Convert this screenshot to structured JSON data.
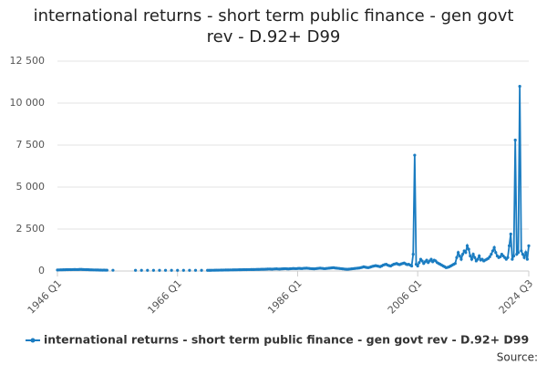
{
  "chart_data": {
    "type": "line",
    "title": "international returns - short term public finance - gen govt rev - D.92+ D99",
    "source": "Source:",
    "categories": [
      "1946 Q1",
      null,
      null,
      null,
      null,
      null,
      null,
      null,
      null,
      null,
      null,
      null,
      null,
      null,
      null,
      null,
      null,
      null,
      null,
      null,
      null,
      null,
      null,
      null,
      null,
      null,
      null,
      null,
      null,
      null,
      null,
      null,
      null,
      null,
      null,
      null,
      null,
      null,
      null,
      null,
      null,
      null,
      null,
      null,
      null,
      null,
      null,
      null,
      null,
      null,
      null,
      null,
      null,
      null,
      null,
      null,
      null,
      null,
      null,
      null,
      null,
      null,
      null,
      null,
      null,
      null,
      null,
      null,
      null,
      null,
      null,
      null,
      null,
      null,
      null,
      null,
      null,
      null,
      null,
      null,
      "1966 Q1",
      null,
      null,
      null,
      null,
      null,
      null,
      null,
      null,
      null,
      null,
      null,
      null,
      null,
      null,
      null,
      null,
      null,
      null,
      null,
      null,
      null,
      null,
      null,
      null,
      null,
      null,
      null,
      null,
      null,
      null,
      null,
      null,
      null,
      null,
      null,
      null,
      null,
      null,
      null,
      null,
      null,
      null,
      null,
      null,
      null,
      null,
      null,
      null,
      null,
      null,
      null,
      null,
      null,
      null,
      null,
      null,
      null,
      null,
      null,
      null,
      null,
      null,
      null,
      null,
      null,
      null,
      null,
      null,
      null,
      null,
      null,
      null,
      null,
      null,
      null,
      null,
      null,
      null,
      null,
      "1986 Q1",
      null,
      null,
      null,
      null,
      null,
      null,
      null,
      null,
      null,
      null,
      null,
      null,
      null,
      null,
      null,
      null,
      null,
      null,
      null,
      null,
      null,
      null,
      null,
      null,
      null,
      null,
      null,
      null,
      null,
      null,
      null,
      null,
      null,
      null,
      null,
      null,
      null,
      null,
      null,
      null,
      null,
      null,
      null,
      null,
      null,
      null,
      null,
      null,
      null,
      null,
      null,
      null,
      null,
      null,
      null,
      null,
      null,
      null,
      null,
      null,
      null,
      null,
      null,
      null,
      null,
      null,
      null,
      null,
      null,
      null,
      null,
      null,
      null,
      null,
      null,
      null,
      null,
      null,
      null,
      "2006 Q1",
      null,
      null,
      null,
      null,
      null,
      null,
      null,
      null,
      null,
      null,
      null,
      null,
      null,
      null,
      null,
      null,
      null,
      null,
      null,
      null,
      null,
      null,
      null,
      null,
      null,
      null,
      null,
      null,
      null,
      null,
      null,
      null,
      null,
      null,
      null,
      null,
      null,
      null,
      null,
      null,
      null,
      null,
      null,
      null,
      null,
      null,
      null,
      null,
      null,
      null,
      null,
      null,
      null,
      null,
      null,
      null,
      null,
      null,
      null,
      null,
      null,
      null,
      null,
      null,
      null,
      null,
      null,
      null,
      null,
      null,
      null,
      null,
      null,
      "2024 Q3"
    ],
    "series": [
      {
        "name": "international returns - short term public finance - gen govt rev - D.92+ D99",
        "color": "#1a7cc1",
        "values": [
          60,
          65,
          70,
          70,
          75,
          75,
          80,
          80,
          85,
          80,
          85,
          90,
          90,
          85,
          90,
          95,
          95,
          90,
          85,
          80,
          80,
          75,
          70,
          70,
          65,
          65,
          60,
          60,
          55,
          55,
          50,
          55,
          50,
          50,
          null,
          null,
          null,
          45,
          null,
          null,
          null,
          null,
          null,
          null,
          null,
          null,
          null,
          null,
          null,
          null,
          null,
          null,
          40,
          null,
          null,
          null,
          40,
          null,
          null,
          null,
          40,
          null,
          null,
          null,
          40,
          null,
          null,
          null,
          40,
          null,
          null,
          null,
          40,
          null,
          null,
          null,
          40,
          null,
          null,
          null,
          40,
          null,
          null,
          null,
          40,
          null,
          null,
          null,
          40,
          null,
          null,
          null,
          40,
          null,
          null,
          null,
          40,
          null,
          null,
          null,
          40,
          40,
          42,
          45,
          45,
          48,
          50,
          50,
          52,
          55,
          55,
          58,
          60,
          60,
          62,
          65,
          65,
          68,
          70,
          70,
          72,
          75,
          75,
          78,
          80,
          80,
          82,
          85,
          85,
          88,
          90,
          90,
          92,
          95,
          95,
          98,
          100,
          100,
          105,
          110,
          115,
          120,
          115,
          110,
          120,
          125,
          130,
          120,
          115,
          125,
          130,
          135,
          140,
          130,
          125,
          135,
          140,
          150,
          145,
          140,
          150,
          155,
          150,
          145,
          160,
          165,
          170,
          160,
          150,
          140,
          135,
          130,
          140,
          150,
          160,
          170,
          160,
          150,
          140,
          150,
          160,
          170,
          180,
          190,
          200,
          180,
          170,
          160,
          150,
          140,
          130,
          120,
          110,
          100,
          110,
          120,
          130,
          140,
          150,
          160,
          170,
          180,
          200,
          220,
          250,
          230,
          210,
          200,
          220,
          250,
          280,
          300,
          320,
          300,
          280,
          260,
          300,
          350,
          380,
          400,
          350,
          320,
          300,
          350,
          400,
          420,
          450,
          400,
          380,
          420,
          450,
          480,
          420,
          380,
          400,
          350,
          300,
          1000,
          6900,
          400,
          300,
          500,
          700,
          600,
          450,
          550,
          650,
          500,
          600,
          700,
          550,
          650,
          600,
          500,
          450,
          400,
          350,
          300,
          250,
          200,
          220,
          250,
          300,
          350,
          400,
          450,
          800,
          1100,
          900,
          700,
          1000,
          1200,
          1100,
          1500,
          1300,
          900,
          700,
          1000,
          800,
          600,
          700,
          900,
          650,
          700,
          600,
          650,
          700,
          750,
          850,
          1000,
          1200,
          1400,
          1100,
          900,
          800,
          850,
          1000,
          900,
          800,
          700,
          800,
          1500,
          2200,
          700,
          900,
          7800,
          1000,
          1100,
          11000,
          1200,
          1000,
          800,
          1100,
          700,
          1500
        ]
      }
    ],
    "ylim": [
      0,
      12500
    ],
    "yticks": [
      0,
      {
        "value": 2500,
        "label": "2 500"
      },
      {
        "value": 5000,
        "label": "5 000"
      },
      {
        "value": 7500,
        "label": "7 500"
      },
      {
        "value": 10000,
        "label": "10 000"
      },
      {
        "value": 12500,
        "label": "12 500"
      }
    ],
    "grid": true
  }
}
